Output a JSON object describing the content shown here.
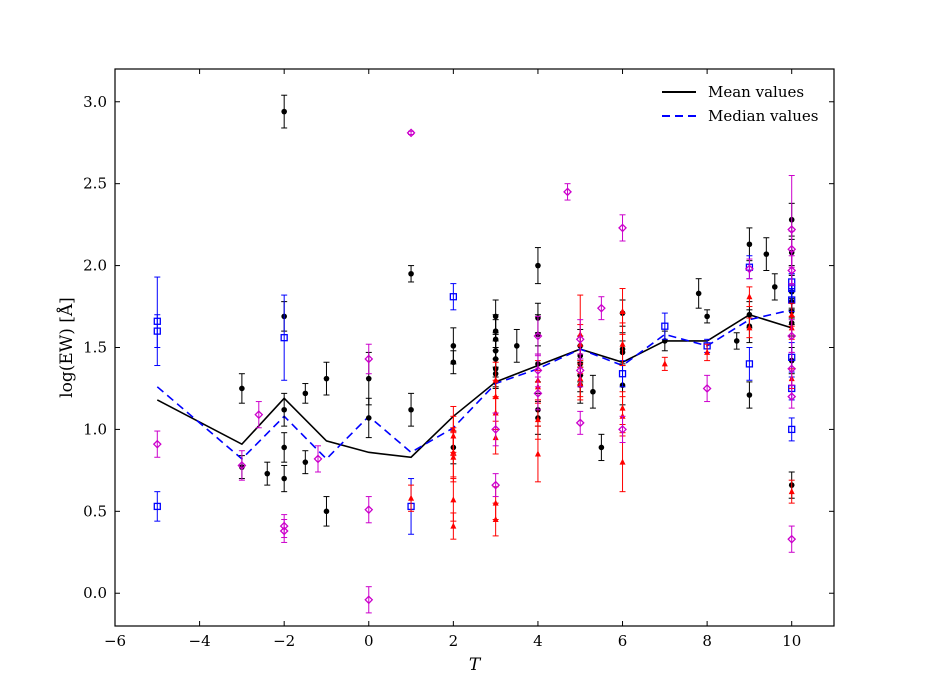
{
  "chart_data": {
    "type": "scatter",
    "xlabel": "T",
    "ylabel": "log(EW) [Å]",
    "xlim": [
      -6,
      11
    ],
    "ylim": [
      -0.2,
      3.2
    ],
    "xticks": [
      -6,
      -4,
      -2,
      0,
      2,
      4,
      6,
      8,
      10
    ],
    "xtick_labels": [
      "−6",
      "−4",
      "−2",
      "0",
      "2",
      "4",
      "6",
      "8",
      "10"
    ],
    "yticks": [
      0.0,
      0.5,
      1.0,
      1.5,
      2.0,
      2.5,
      3.0
    ],
    "ytick_labels": [
      "0.0",
      "0.5",
      "1.0",
      "1.5",
      "2.0",
      "2.5",
      "3.0"
    ],
    "legend": {
      "position": "top-right",
      "entries": [
        {
          "label": "Mean values",
          "style": "solid",
          "color": "#000000"
        },
        {
          "label": "Median values",
          "style": "dashed",
          "color": "#0000ff"
        }
      ]
    },
    "lines": [
      {
        "label": "Mean values",
        "color": "#000000",
        "dash": false,
        "x": [
          -5,
          -3,
          -2,
          -1,
          0,
          1,
          2,
          3,
          4,
          5,
          6,
          7,
          8,
          9,
          10
        ],
        "y": [
          1.18,
          0.91,
          1.19,
          0.93,
          0.86,
          0.83,
          1.08,
          1.29,
          1.39,
          1.49,
          1.41,
          1.54,
          1.54,
          1.7,
          1.62
        ]
      },
      {
        "label": "Median values",
        "color": "#0000ff",
        "dash": true,
        "x": [
          -5,
          -3,
          -2,
          -1,
          0,
          1,
          2,
          3,
          4,
          5,
          6,
          7,
          8,
          9,
          10
        ],
        "y": [
          1.26,
          0.82,
          1.08,
          0.82,
          1.08,
          0.86,
          1.01,
          1.28,
          1.37,
          1.49,
          1.39,
          1.58,
          1.51,
          1.67,
          1.73
        ]
      }
    ],
    "series": [
      {
        "marker": "circle",
        "color": "#000000",
        "points": [
          [
            -3,
            1.25,
            0.09
          ],
          [
            -3,
            0.77,
            0.07
          ],
          [
            -2.4,
            0.73,
            0.07
          ],
          [
            -2,
            2.94,
            0.1
          ],
          [
            -2,
            1.69,
            0.09
          ],
          [
            -2,
            1.12,
            0.1
          ],
          [
            -2,
            0.89,
            0.09
          ],
          [
            -2,
            0.7,
            0.08
          ],
          [
            -1.5,
            1.22,
            0.06
          ],
          [
            -1.5,
            0.8,
            0.07
          ],
          [
            -1,
            1.31,
            0.1
          ],
          [
            -1,
            0.5,
            0.09
          ],
          [
            0,
            1.31,
            0.16
          ],
          [
            0,
            1.07,
            0.12
          ],
          [
            1,
            1.95,
            0.05
          ],
          [
            1,
            1.12,
            0.1
          ],
          [
            2,
            1.51,
            0.11
          ],
          [
            2,
            1.41,
            0.07
          ],
          [
            2,
            0.89,
            0.1
          ],
          [
            3,
            1.69,
            0.1
          ],
          [
            3,
            1.6,
            0.1
          ],
          [
            3,
            1.55,
            0.12
          ],
          [
            3,
            1.48,
            0.1
          ],
          [
            3,
            1.43,
            0.11
          ],
          [
            3,
            1.37,
            0.11
          ],
          [
            3,
            1.34,
            0.09
          ],
          [
            3.5,
            1.51,
            0.1
          ],
          [
            4,
            2.0,
            0.11
          ],
          [
            4,
            1.68,
            0.09
          ],
          [
            4,
            1.58,
            0.12
          ],
          [
            4,
            1.4,
            0.11
          ],
          [
            4,
            1.12,
            0.1
          ],
          [
            4,
            1.07,
            0.1
          ],
          [
            5,
            1.51,
            0.1
          ],
          [
            5,
            1.45,
            0.12
          ],
          [
            5,
            1.4,
            0.11
          ],
          [
            5,
            1.33,
            0.1
          ],
          [
            5,
            1.27,
            0.11
          ],
          [
            5.3,
            1.23,
            0.1
          ],
          [
            5.5,
            0.89,
            0.08
          ],
          [
            6,
            1.71,
            0.08
          ],
          [
            6,
            1.49,
            0.1
          ],
          [
            6,
            1.47,
            0.07
          ],
          [
            6,
            1.27,
            0.12
          ],
          [
            7,
            1.54,
            0.06
          ],
          [
            7.8,
            1.83,
            0.09
          ],
          [
            8,
            1.69,
            0.04
          ],
          [
            8.7,
            1.54,
            0.05
          ],
          [
            9,
            2.13,
            0.1
          ],
          [
            9,
            1.7,
            0.08
          ],
          [
            9,
            1.63,
            0.1
          ],
          [
            9,
            1.21,
            0.08
          ],
          [
            9.4,
            2.07,
            0.1
          ],
          [
            9.6,
            1.87,
            0.08
          ],
          [
            10,
            2.28,
            0.1
          ],
          [
            10,
            2.08,
            0.08
          ],
          [
            10,
            1.84,
            0.1
          ],
          [
            10,
            1.78,
            0.1
          ],
          [
            10,
            1.72,
            0.08
          ],
          [
            10,
            1.65,
            0.08
          ],
          [
            10,
            1.42,
            0.08
          ],
          [
            10,
            0.66,
            0.08
          ]
        ]
      },
      {
        "marker": "square",
        "color": "#0000ff",
        "points": [
          [
            -5,
            1.66,
            0.27
          ],
          [
            -5,
            1.6,
            0.1
          ],
          [
            -5,
            0.53,
            0.09
          ],
          [
            -2,
            1.56,
            0.26
          ],
          [
            1,
            0.53,
            0.17
          ],
          [
            2,
            1.81,
            0.08
          ],
          [
            6,
            1.34,
            0.08
          ],
          [
            7,
            1.63,
            0.08
          ],
          [
            8,
            1.51,
            0.04
          ],
          [
            9,
            1.99,
            0.07
          ],
          [
            9,
            1.4,
            0.1
          ],
          [
            10,
            1.9,
            0.05
          ],
          [
            10,
            1.86,
            0.09
          ],
          [
            10,
            1.79,
            0.07
          ],
          [
            10,
            1.44,
            0.09
          ],
          [
            10,
            1.25,
            0.07
          ],
          [
            10,
            1.0,
            0.07
          ]
        ]
      },
      {
        "marker": "triangle",
        "color": "#ff0000",
        "points": [
          [
            1,
            0.58,
            0.08
          ],
          [
            2,
            1.0,
            0.14
          ],
          [
            2,
            0.96,
            0.12
          ],
          [
            2,
            0.86,
            0.15
          ],
          [
            2,
            0.83,
            0.15
          ],
          [
            2,
            0.57,
            0.13
          ],
          [
            2,
            0.41,
            0.08
          ],
          [
            3,
            1.3,
            0.11
          ],
          [
            3,
            1.2,
            0.1
          ],
          [
            3,
            1.1,
            0.1
          ],
          [
            3,
            0.95,
            0.1
          ],
          [
            3,
            0.55,
            0.1
          ],
          [
            3,
            0.45,
            0.1
          ],
          [
            4,
            1.3,
            0.12
          ],
          [
            4,
            1.26,
            0.1
          ],
          [
            4,
            1.06,
            0.12
          ],
          [
            4,
            0.85,
            0.17
          ],
          [
            5,
            1.58,
            0.24
          ],
          [
            5,
            1.52,
            0.12
          ],
          [
            5,
            1.31,
            0.11
          ],
          [
            5,
            1.28,
            0.1
          ],
          [
            6,
            1.72,
            0.14
          ],
          [
            6,
            1.52,
            0.13
          ],
          [
            6,
            1.13,
            0.1
          ],
          [
            6,
            1.08,
            0.12
          ],
          [
            6,
            0.8,
            0.18
          ],
          [
            7,
            1.4,
            0.04
          ],
          [
            8,
            1.47,
            0.05
          ],
          [
            9,
            1.81,
            0.06
          ],
          [
            9,
            1.62,
            0.06
          ],
          [
            10,
            1.7,
            0.07
          ],
          [
            10,
            1.62,
            0.07
          ],
          [
            10,
            1.31,
            0.06
          ],
          [
            10,
            0.62,
            0.07
          ]
        ]
      },
      {
        "marker": "diamond",
        "color": "#cc00cc",
        "points": [
          [
            -5,
            0.91,
            0.08
          ],
          [
            -3,
            0.78,
            0.09
          ],
          [
            -2.6,
            1.09,
            0.08
          ],
          [
            -2,
            0.41,
            0.07
          ],
          [
            -2,
            0.38,
            0.07
          ],
          [
            -1.2,
            0.82,
            0.08
          ],
          [
            0,
            1.43,
            0.09
          ],
          [
            0,
            0.51,
            0.08
          ],
          [
            0,
            -0.04,
            0.08
          ],
          [
            1,
            2.81,
            0.01
          ],
          [
            3,
            1.0,
            0.1
          ],
          [
            3,
            0.66,
            0.07
          ],
          [
            4,
            1.57,
            0.12
          ],
          [
            4,
            1.36,
            0.1
          ],
          [
            4,
            1.22,
            0.1
          ],
          [
            4.7,
            2.45,
            0.05
          ],
          [
            5,
            1.55,
            0.12
          ],
          [
            5,
            1.36,
            0.1
          ],
          [
            5,
            1.04,
            0.07
          ],
          [
            5.5,
            1.74,
            0.07
          ],
          [
            6,
            2.23,
            0.08
          ],
          [
            6,
            1.0,
            0.08
          ],
          [
            8,
            1.25,
            0.08
          ],
          [
            9,
            1.98,
            0.06
          ],
          [
            10,
            2.22,
            0.33
          ],
          [
            10,
            2.1,
            0.11
          ],
          [
            10,
            1.97,
            0.09
          ],
          [
            10,
            1.57,
            0.1
          ],
          [
            10,
            1.37,
            0.1
          ],
          [
            10,
            1.2,
            0.07
          ],
          [
            10,
            0.33,
            0.08
          ]
        ]
      }
    ]
  }
}
